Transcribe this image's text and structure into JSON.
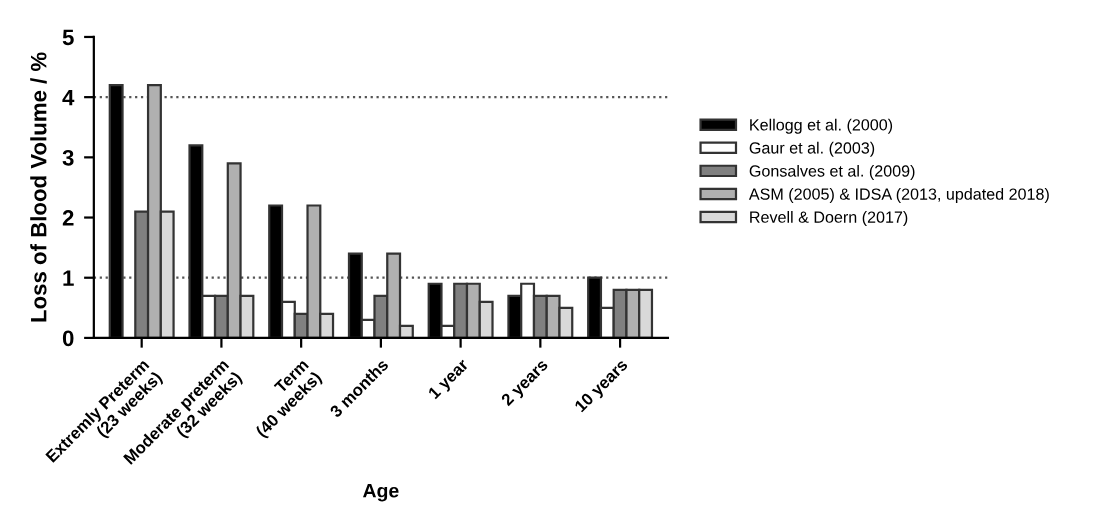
{
  "chart_data": {
    "type": "bar",
    "xlabel": "Age",
    "ylabel": "Loss of Blood Volume / %",
    "categories": [
      "Extremly Preterm\n(23 weeks)",
      "Moderate preterm\n(32 weeks)",
      "Term\n(40 weeks)",
      "3 months",
      "1 year",
      "2 years",
      "10 years"
    ],
    "series": [
      {
        "name": "Kellogg et al. (2000)",
        "color": "#000000",
        "values": [
          4.2,
          3.2,
          2.2,
          1.4,
          0.9,
          0.7,
          1.0
        ]
      },
      {
        "name": "Gaur et al. (2003)",
        "color": "#ffffff",
        "values": [
          null,
          0.7,
          0.6,
          0.3,
          0.2,
          0.9,
          0.5
        ]
      },
      {
        "name": "Gonsalves et al. (2009)",
        "color": "#808080",
        "values": [
          2.1,
          0.7,
          0.4,
          0.7,
          0.9,
          0.7,
          0.8
        ]
      },
      {
        "name": "ASM (2005) & IDSA (2013, updated 2018)",
        "color": "#b0b0b0",
        "values": [
          4.2,
          2.9,
          2.2,
          1.4,
          0.9,
          0.7,
          0.8
        ]
      },
      {
        "name": "Revell & Doern (2017)",
        "color": "#d9d9d9",
        "values": [
          2.1,
          0.7,
          0.4,
          0.2,
          0.6,
          0.5,
          0.8
        ]
      }
    ],
    "ylim": [
      0,
      5
    ],
    "yticks": [
      0,
      1,
      2,
      3,
      4,
      5
    ],
    "ref_lines": [
      {
        "axis": "y",
        "value": 4,
        "line_style": "dotted",
        "color": "#555555"
      },
      {
        "axis": "y",
        "value": 1,
        "line_style": "dotted",
        "color": "#555555"
      }
    ],
    "grid": false,
    "legend": "right"
  }
}
